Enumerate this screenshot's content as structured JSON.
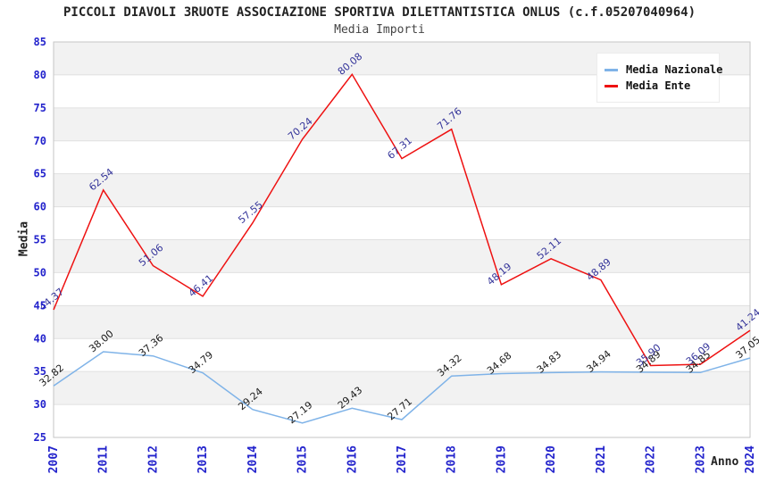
{
  "header": {
    "title": "PICCOLI DIAVOLI 3RUOTE ASSOCIAZIONE SPORTIVA DILETTANTISTICA ONLUS (c.f.05207040964)",
    "subtitle": "Media Importi"
  },
  "legend": {
    "items": [
      {
        "label": "Media Nazionale",
        "color": "#7fb3e8"
      },
      {
        "label": "Media Ente",
        "color": "#ee1111"
      }
    ]
  },
  "chart_data": {
    "type": "line",
    "title": "PICCOLI DIAVOLI 3RUOTE ASSOCIAZIONE SPORTIVA DILETTANTISTICA ONLUS (c.f.05207040964)",
    "subtitle": "Media Importi",
    "xlabel": "Anno",
    "ylabel": "Media",
    "categories": [
      "2007",
      "2011",
      "2012",
      "2013",
      "2014",
      "2015",
      "2016",
      "2017",
      "2018",
      "2019",
      "2020",
      "2021",
      "2022",
      "2023",
      "2024"
    ],
    "series": [
      {
        "name": "Media Nazionale",
        "color": "#7fb3e8",
        "label_color": "#1a1a1a",
        "values": [
          32.82,
          38.0,
          37.36,
          34.79,
          29.24,
          27.19,
          29.43,
          27.71,
          34.32,
          34.68,
          34.83,
          34.94,
          34.89,
          34.85,
          37.05
        ]
      },
      {
        "name": "Media Ente",
        "color": "#ee1111",
        "label_color": "#333399",
        "values": [
          44.37,
          62.54,
          51.06,
          46.41,
          57.55,
          70.24,
          80.08,
          67.31,
          71.76,
          48.19,
          52.11,
          48.89,
          35.9,
          36.09,
          41.24
        ]
      }
    ],
    "ylim": [
      25,
      85
    ],
    "ytick_step": 5,
    "grid": true,
    "legend_position": "top-right",
    "axis_tick_color": "#2323cc",
    "band_colors": [
      "#ffffff",
      "#f2f2f2"
    ],
    "gridline_color": "#e0e0e0",
    "border_color": "#c6c6c6",
    "value_decimals": 2
  }
}
